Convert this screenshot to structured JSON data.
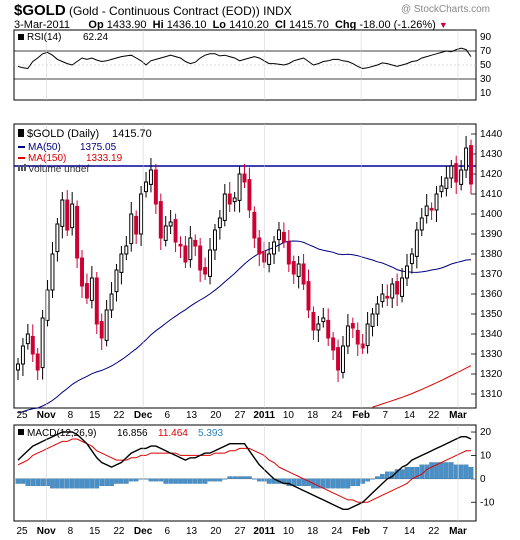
{
  "header": {
    "symbol": "$GOLD",
    "name": "(Gold - Continuous Contract (EOD))",
    "exchange": "INDX",
    "watermark": "@ StockCharts.com",
    "date": "3-Mar-2011",
    "op_label": "Op",
    "op": "1433.90",
    "hi_label": "Hi",
    "hi": "1436.10",
    "lo_label": "Lo",
    "lo": "1410.20",
    "cl_label": "Cl",
    "cl": "1415.70",
    "chg_label": "Chg",
    "chg": "-18.00 (-1.26%)"
  },
  "colors": {
    "up": "#000000",
    "down": "#cc0033",
    "ma50": "#000080",
    "ma150": "#dd0000",
    "rsi": "#000000",
    "macd": "#000000",
    "signal": "#dd0000",
    "hist": "#4a90c8",
    "resistance": "#000099"
  },
  "chart_data": [
    {
      "type": "line",
      "panel": "RSI",
      "label": "RSI(14)",
      "value": "62.24",
      "ylim": [
        0,
        100
      ],
      "yticks": [
        "90",
        "70",
        "50",
        "30",
        "10"
      ],
      "values": [
        48,
        46,
        45,
        55,
        60,
        66,
        68,
        64,
        58,
        55,
        52,
        50,
        55,
        60,
        58,
        60,
        57,
        55,
        56,
        58,
        60,
        62,
        63,
        64,
        60,
        56,
        50,
        56,
        58,
        60,
        62,
        64,
        62,
        60,
        55,
        52,
        54,
        60,
        64,
        66,
        66,
        63,
        64,
        62,
        60,
        56,
        58,
        60,
        62,
        60,
        56,
        52,
        52,
        51,
        50,
        52,
        56,
        58,
        60,
        55,
        50,
        52,
        55,
        56,
        58,
        58,
        56,
        55,
        52,
        48,
        45,
        46,
        48,
        50,
        53,
        52,
        50,
        48,
        50,
        52,
        55,
        56,
        60,
        62,
        64,
        66,
        68,
        70,
        69,
        72,
        74,
        72,
        62
      ]
    },
    {
      "type": "candlestick",
      "panel": "price",
      "label": "$GOLD (Daily)",
      "last": "1415.70",
      "ma50_label": "MA(50)",
      "ma50_value": "1375.05",
      "ma150_label": "MA(150)",
      "ma150_value": "1333.19",
      "volume_label": "Volume undef",
      "ylim": [
        1303,
        1445
      ],
      "yticks": [
        "1440",
        "1430",
        "1420",
        "1410",
        "1400",
        "1390",
        "1380",
        "1370",
        "1360",
        "1350",
        "1340",
        "1330",
        "1320",
        "1310"
      ],
      "resistance": 1424,
      "close": [
        1325,
        1334,
        1340,
        1330,
        1322,
        1348,
        1362,
        1380,
        1395,
        1407,
        1392,
        1405,
        1378,
        1364,
        1358,
        1368,
        1345,
        1338,
        1352,
        1360,
        1372,
        1380,
        1384,
        1400,
        1390,
        1410,
        1416,
        1422,
        1405,
        1388,
        1394,
        1396,
        1386,
        1384,
        1376,
        1388,
        1384,
        1372,
        1370,
        1382,
        1392,
        1398,
        1410,
        1405,
        1408,
        1420,
        1416,
        1402,
        1388,
        1380,
        1376,
        1380,
        1386,
        1392,
        1386,
        1375,
        1370,
        1375,
        1365,
        1352,
        1342,
        1345,
        1348,
        1338,
        1332,
        1322,
        1334,
        1344,
        1343,
        1335,
        1333,
        1345,
        1350,
        1355,
        1360,
        1358,
        1365,
        1360,
        1368,
        1374,
        1380,
        1392,
        1398,
        1404,
        1402,
        1410,
        1414,
        1418,
        1424,
        1416,
        1422,
        1433,
        1415
      ]
    },
    {
      "type": "line",
      "panel": "MACD",
      "label": "MACD(12,26,9)",
      "macd_value": "16.856",
      "signal_value": "11.464",
      "hist_value": "5.393",
      "ylim": [
        -18,
        23
      ],
      "yticks": [
        "20",
        "10",
        "0",
        "-10"
      ],
      "macd": [
        8,
        10,
        12,
        14,
        15,
        16,
        17,
        18,
        19,
        20,
        20,
        20,
        19,
        17,
        15,
        12,
        9,
        7,
        6,
        5,
        6,
        7,
        9,
        11,
        12,
        13,
        13,
        14,
        14,
        13,
        12,
        11,
        10,
        9,
        8,
        9,
        9,
        10,
        11,
        11,
        12,
        13,
        14,
        15,
        15,
        15,
        15,
        12,
        9,
        6,
        4,
        2,
        0,
        -1,
        -2,
        -2,
        -3,
        -4,
        -5,
        -6,
        -7,
        -8,
        -9,
        -10,
        -11,
        -12,
        -13,
        -13,
        -12,
        -11,
        -10,
        -8,
        -6,
        -4,
        -2,
        0,
        1,
        3,
        5,
        6,
        8,
        9,
        10,
        11,
        12,
        13,
        14,
        15,
        16,
        17,
        18,
        18,
        17
      ],
      "signal": [
        6,
        7,
        8,
        10,
        11,
        12,
        13,
        14,
        15,
        16,
        16,
        17,
        17,
        16,
        15,
        14,
        12,
        11,
        10,
        9,
        8,
        8,
        8,
        9,
        9,
        10,
        10,
        11,
        11,
        11,
        11,
        11,
        11,
        10,
        10,
        10,
        10,
        10,
        10,
        10,
        11,
        11,
        11,
        12,
        12,
        13,
        13,
        13,
        12,
        11,
        10,
        8,
        7,
        5,
        4,
        3,
        2,
        1,
        0,
        -1,
        -2,
        -3,
        -4,
        -5,
        -6,
        -7,
        -8,
        -9,
        -9,
        -10,
        -10,
        -10,
        -9,
        -8,
        -7,
        -6,
        -5,
        -4,
        -3,
        -2,
        0,
        1,
        2,
        4,
        5,
        6,
        7,
        8,
        9,
        10,
        11,
        12,
        12
      ],
      "hist": [
        -2,
        -2,
        -3,
        -3,
        -3,
        -3,
        -3,
        -4,
        -4,
        -4,
        -4,
        -4,
        -4,
        -4,
        -4,
        -4,
        -4,
        -3,
        -3,
        -3,
        -2,
        -2,
        -2,
        -1,
        -1,
        0,
        0,
        -1,
        -1,
        -1,
        -2,
        -2,
        -2,
        -2,
        -2,
        -2,
        -2,
        -2,
        -2,
        -1,
        -1,
        -1,
        0,
        1,
        1,
        1,
        1,
        1,
        0,
        -1,
        -1,
        -2,
        -2,
        -2,
        -2,
        -3,
        -3,
        -3,
        -3,
        -3,
        -4,
        -4,
        -4,
        -4,
        -4,
        -4,
        -4,
        -4,
        -3,
        -3,
        -2,
        -1,
        0,
        1,
        2,
        3,
        3,
        4,
        4,
        5,
        5,
        5,
        6,
        6,
        7,
        7,
        7,
        7,
        7,
        6,
        6,
        6,
        5
      ]
    }
  ],
  "x_axis": {
    "labels": [
      "25",
      "Nov",
      "8",
      "15",
      "22",
      "Dec",
      "6",
      "13",
      "20",
      "27",
      "2011",
      "10",
      "18",
      "24",
      "Feb",
      "7",
      "14",
      "22",
      "Mar"
    ],
    "bold": [
      "Nov",
      "Dec",
      "2011",
      "Feb",
      "Mar"
    ]
  }
}
